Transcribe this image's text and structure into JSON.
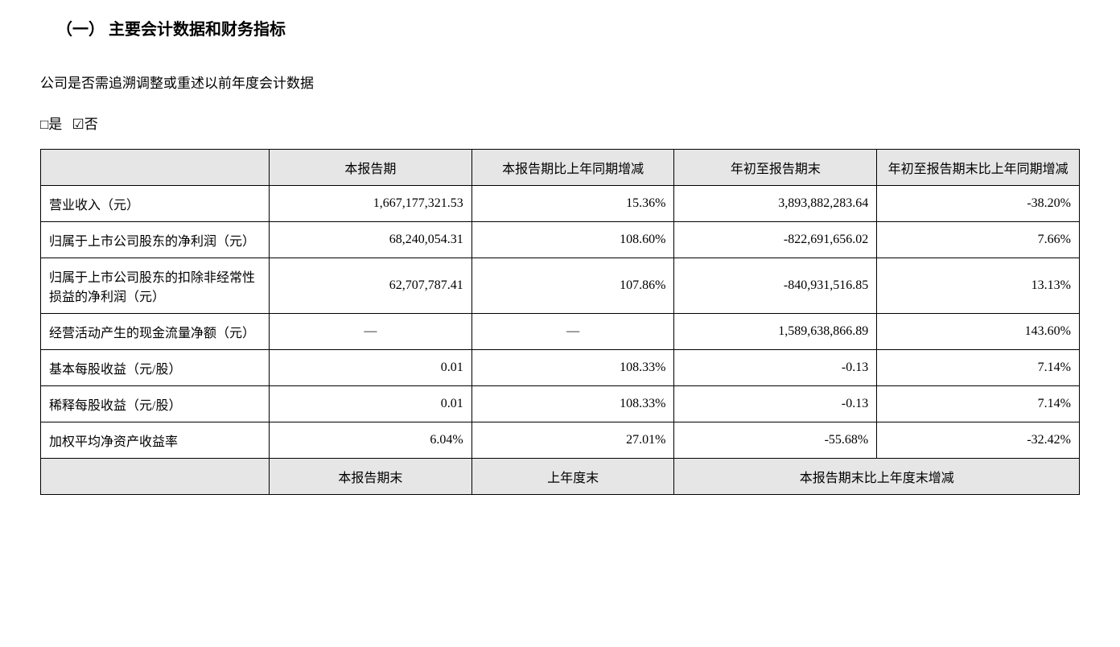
{
  "heading": "（一） 主要会计数据和财务指标",
  "question": "公司是否需追溯调整或重述以前年度会计数据",
  "checkboxes": {
    "yes": "□是",
    "no": "☑否"
  },
  "table": {
    "headers": {
      "blank": "",
      "col1": "本报告期",
      "col2": "本报告期比上年同期增减",
      "col3": "年初至报告期末",
      "col4": "年初至报告期末比上年同期增减"
    },
    "rows": [
      {
        "label": "营业收入（元）",
        "v1": "1,667,177,321.53",
        "v2": "15.36%",
        "v3": "3,893,882,283.64",
        "v4": "-38.20%"
      },
      {
        "label": "归属于上市公司股东的净利润（元）",
        "v1": "68,240,054.31",
        "v2": "108.60%",
        "v3": "-822,691,656.02",
        "v4": "7.66%"
      },
      {
        "label": "归属于上市公司股东的扣除非经常性损益的净利润（元）",
        "v1": "62,707,787.41",
        "v2": "107.86%",
        "v3": "-840,931,516.85",
        "v4": "13.13%"
      },
      {
        "label": "经营活动产生的现金流量净额（元）",
        "v1": "—",
        "v1_center": true,
        "v2": "—",
        "v2_center": true,
        "v3": "1,589,638,866.89",
        "v4": "143.60%"
      },
      {
        "label": "基本每股收益（元/股）",
        "v1": "0.01",
        "v2": "108.33%",
        "v3": "-0.13",
        "v4": "7.14%"
      },
      {
        "label": "稀释每股收益（元/股）",
        "v1": "0.01",
        "v2": "108.33%",
        "v3": "-0.13",
        "v4": "7.14%"
      },
      {
        "label": "加权平均净资产收益率",
        "v1": "6.04%",
        "v2": "27.01%",
        "v3": "-55.68%",
        "v4": "-32.42%"
      }
    ],
    "footer_headers": {
      "blank": "",
      "col1": "本报告期末",
      "col2": "上年度末",
      "col3": "本报告期末比上年度末增减"
    }
  },
  "styles": {
    "text_color": "#000000",
    "background_color": "#ffffff",
    "header_bg_color": "#e6e6e6",
    "border_color": "#000000",
    "heading_fontsize": 20,
    "body_fontsize": 17,
    "table_fontsize": 16
  }
}
